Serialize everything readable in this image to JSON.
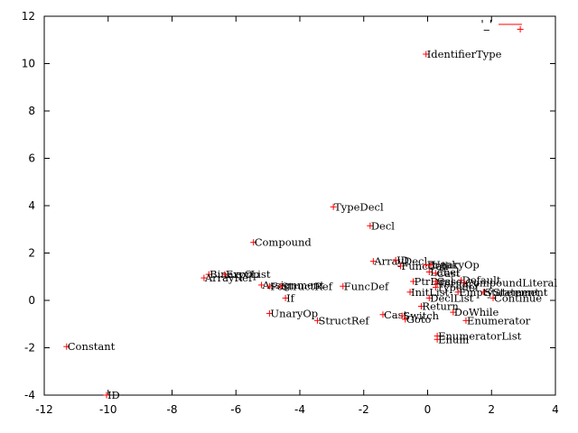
{
  "chart_data": {
    "type": "scatter",
    "title": "",
    "xlabel": "",
    "ylabel": "",
    "xlim": [
      -12,
      4
    ],
    "ylim": [
      -4,
      12
    ],
    "xticks": [
      -12,
      -10,
      -8,
      -6,
      -4,
      -2,
      0,
      2,
      4
    ],
    "yticks": [
      -4,
      -2,
      0,
      2,
      4,
      6,
      8,
      10,
      12
    ],
    "grid": false,
    "marker_color": "#ff0000",
    "legend": {
      "label": "'_'",
      "placement": "top-right"
    },
    "points": [
      {
        "label": "IdentifierType",
        "x": -0.05,
        "y": 10.4
      },
      {
        "label": "TypeDecl",
        "x": -2.95,
        "y": 3.95
      },
      {
        "label": "Decl",
        "x": -1.8,
        "y": 3.15
      },
      {
        "label": "Compound",
        "x": -5.45,
        "y": 2.45
      },
      {
        "label": "ArrayDecl",
        "x": -1.7,
        "y": 1.65
      },
      {
        "label": "ID",
        "x": -1.0,
        "y": 1.7
      },
      {
        "label": "FuncCall",
        "x": -0.85,
        "y": 1.45
      },
      {
        "label": "Break",
        "x": -0.05,
        "y": 1.5
      },
      {
        "label": "UnaryOp",
        "x": 0.1,
        "y": 1.5
      },
      {
        "label": "Label",
        "x": 0.05,
        "y": 1.2
      },
      {
        "label": "Cast",
        "x": 0.25,
        "y": 1.15
      },
      {
        "label": "Default",
        "x": 1.05,
        "y": 0.85
      },
      {
        "label": "CompoundLiteral",
        "x": 1.15,
        "y": 0.75
      },
      {
        "label": "Case",
        "x": 0.25,
        "y": 0.8
      },
      {
        "label": "PtrDecl",
        "x": -0.45,
        "y": 0.8
      },
      {
        "label": "Ternary",
        "x": 0.3,
        "y": 0.7
      },
      {
        "label": "Typedef",
        "x": 0.25,
        "y": 0.55
      },
      {
        "label": "EmptyStatement",
        "x": 0.95,
        "y": 0.35
      },
      {
        "label": "Statement",
        "x": 1.75,
        "y": 0.35
      },
      {
        "label": "Continue",
        "x": 2.05,
        "y": 0.1
      },
      {
        "label": "InitList",
        "x": -0.55,
        "y": 0.35
      },
      {
        "label": "DeclList",
        "x": 0.05,
        "y": 0.1
      },
      {
        "label": "Return",
        "x": -0.2,
        "y": -0.25
      },
      {
        "label": "DoWhile",
        "x": 0.8,
        "y": -0.5
      },
      {
        "label": "Enumerator",
        "x": 1.2,
        "y": -0.85
      },
      {
        "label": "EnumeratorList",
        "x": 0.3,
        "y": -1.5
      },
      {
        "label": "Enum",
        "x": 0.3,
        "y": -1.65
      },
      {
        "label": "Cast",
        "x": -1.4,
        "y": -0.6
      },
      {
        "label": "Switch",
        "x": -0.8,
        "y": -0.65
      },
      {
        "label": "Goto",
        "x": -0.7,
        "y": -0.8
      },
      {
        "label": "BinaryOp",
        "x": -6.85,
        "y": 1.1
      },
      {
        "label": "ExprList",
        "x": -6.35,
        "y": 1.1
      },
      {
        "label": "ArrayRef",
        "x": -7.0,
        "y": 0.95
      },
      {
        "label": "Assignment",
        "x": -5.2,
        "y": 0.65
      },
      {
        "label": "For",
        "x": -4.95,
        "y": 0.6
      },
      {
        "label": "StructRef",
        "x": -4.6,
        "y": 0.6
      },
      {
        "label": "If",
        "x": -4.45,
        "y": 0.1
      },
      {
        "label": "FuncDef",
        "x": -2.65,
        "y": 0.6
      },
      {
        "label": "UnaryOp",
        "x": -4.95,
        "y": -0.55
      },
      {
        "label": "StructRef",
        "x": -3.45,
        "y": -0.85
      },
      {
        "label": "Constant",
        "x": -11.3,
        "y": -1.95
      },
      {
        "label": "ID",
        "x": -10.05,
        "y": -4.0
      },
      {
        "label": "",
        "x": 2.9,
        "y": 11.45
      }
    ]
  }
}
